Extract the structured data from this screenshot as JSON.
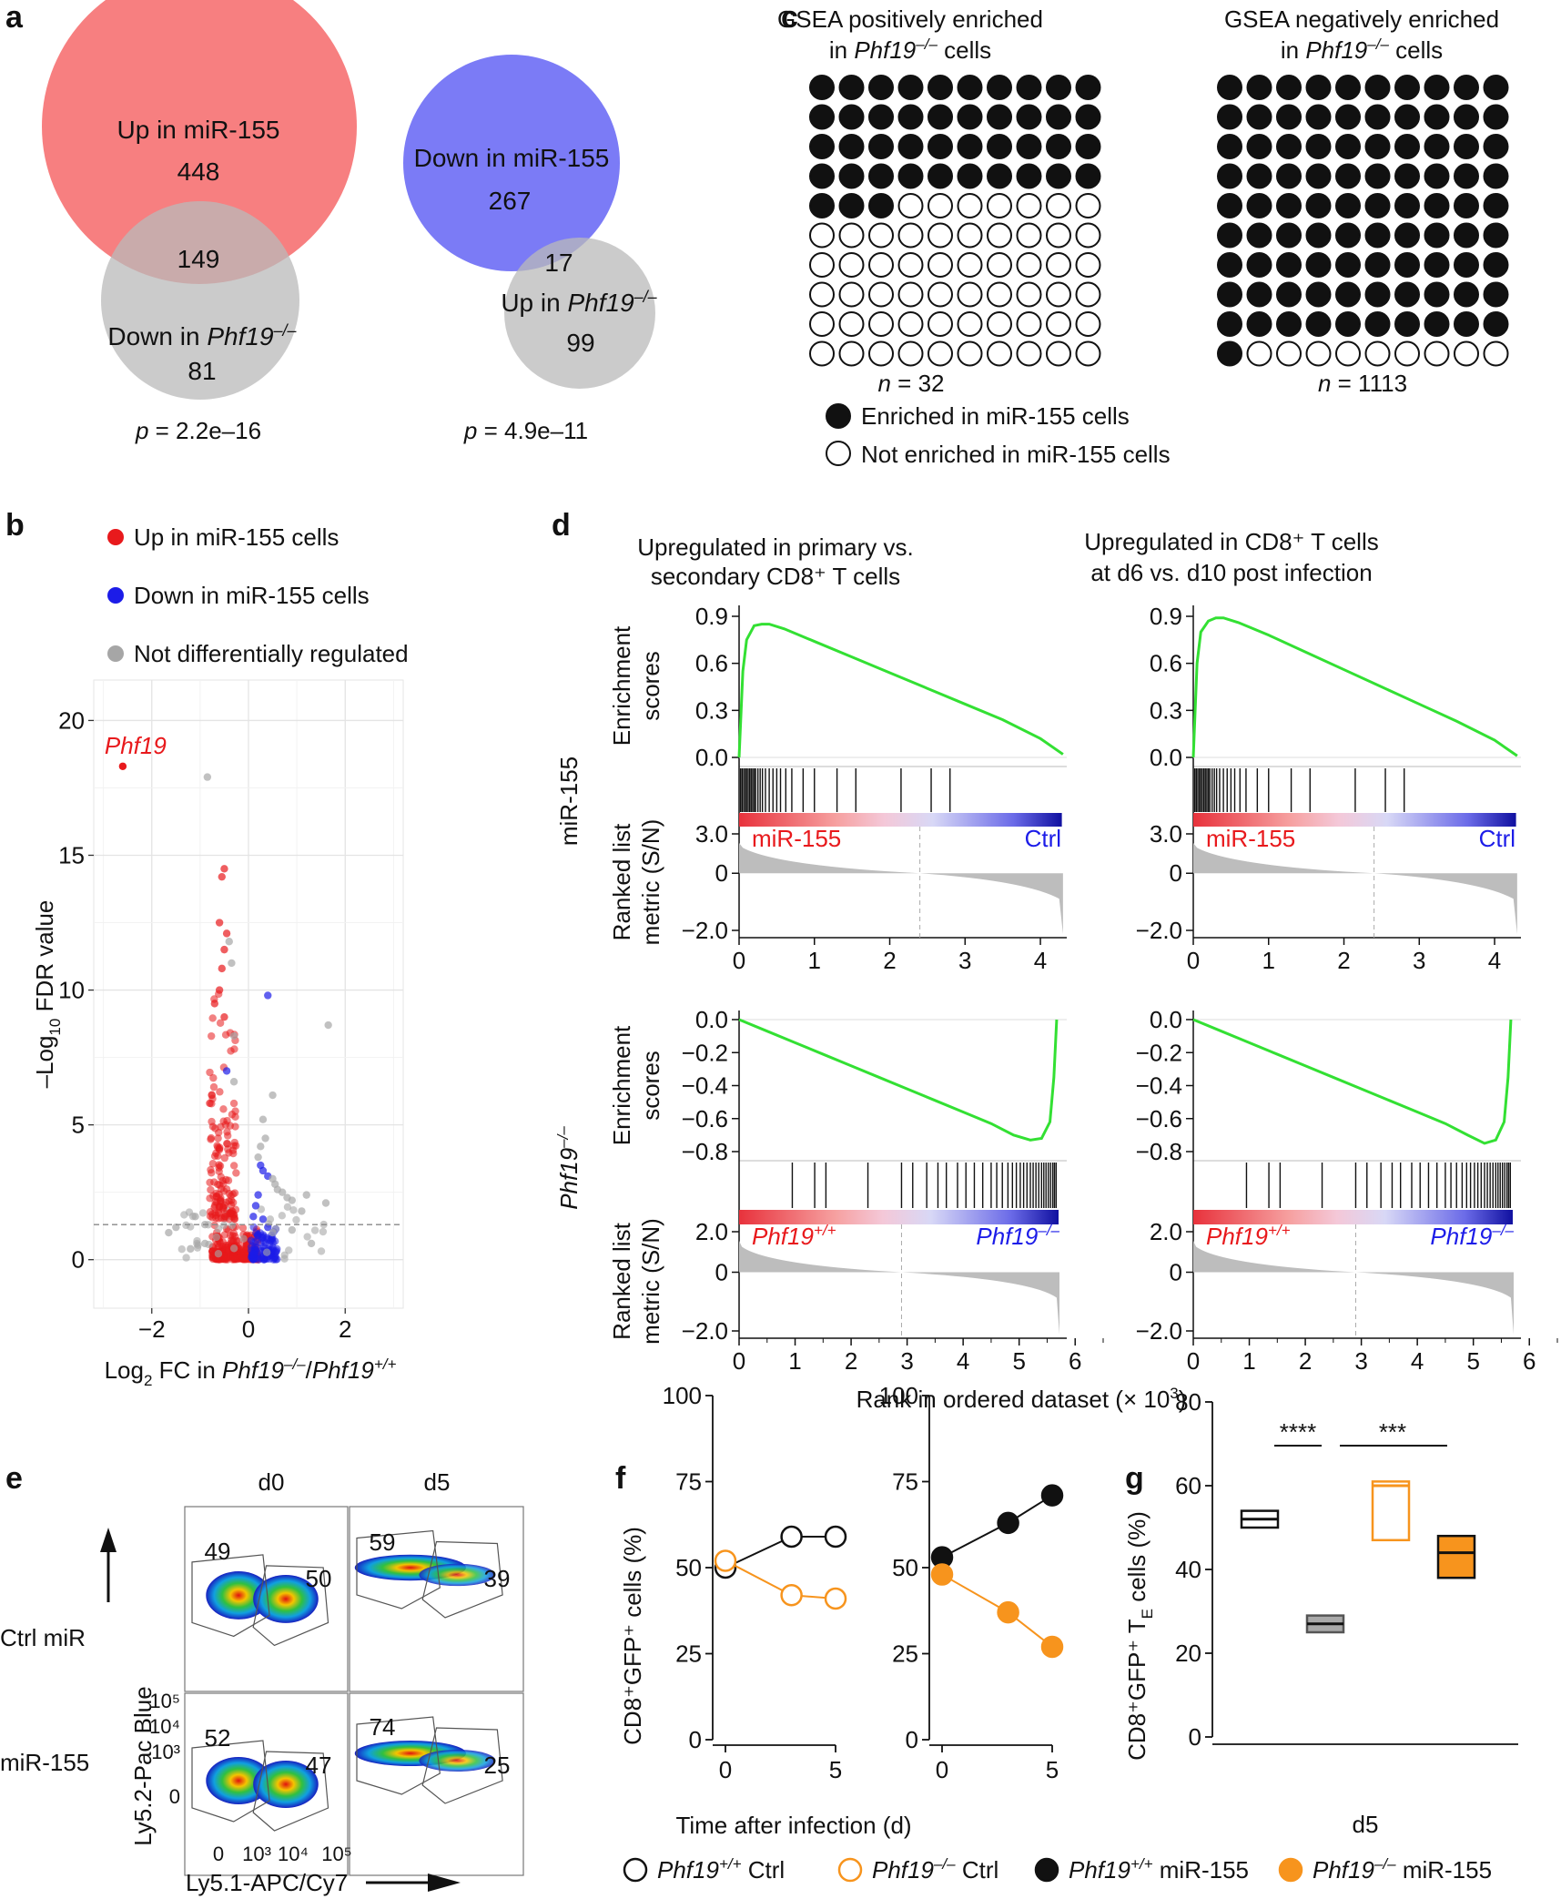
{
  "panels": {
    "a": "a",
    "b": "b",
    "c": "c",
    "d": "d",
    "e": "e",
    "f": "f",
    "g": "g"
  },
  "panel_a": {
    "venn1": {
      "top_label": "Up in miR-155",
      "top_only": "448",
      "overlap": "149",
      "bottom_label": "Down in ",
      "bottom_gene": "Phf19",
      "bottom_sup": "–/–",
      "bottom_only": "81",
      "p_prefix": "p",
      "p_value": " = 2.2e–16",
      "top_color": "#f77f80",
      "bottom_color": "#c4c4c4"
    },
    "venn2": {
      "top_label": "Down in miR-155",
      "top_only": "267",
      "overlap": "17",
      "bottom_label": "Up in ",
      "bottom_gene": "Phf19",
      "bottom_sup": "–/–",
      "bottom_only": "99",
      "p_prefix": "p",
      "p_value": " = 4.9e–11",
      "top_color": "#7b7bf6",
      "bottom_color": "#c4c4c4"
    }
  },
  "panel_b": {
    "legend": [
      {
        "label": "Up in miR-155 cells",
        "color": "#e8191c"
      },
      {
        "label": "Down in miR-155 cells",
        "color": "#1c1ce8"
      },
      {
        "label": "Not differentially regulated",
        "color": "#a6a6a6"
      }
    ],
    "highlight_gene": "Phf19",
    "ylabel_pre": "–Log",
    "ylabel_sub": "10",
    "ylabel_post": " FDR value",
    "xlabel_pre": "Log",
    "xlabel_sub": "2",
    "xlabel_mid": " FC in ",
    "xlabel_g1": "Phf19",
    "xlabel_s1": "–/–",
    "xlabel_slash": "/",
    "xlabel_g2": "Phf19",
    "xlabel_s2": "+/+"
  },
  "panel_c": {
    "left": {
      "title1": "GSEA positively enriched",
      "title2_pre": "in ",
      "title2_gene": "Phf19",
      "title2_sup": "–/–",
      "title2_post": " cells",
      "filled": 43,
      "total": 100,
      "n_label": "n",
      "n_value": " = 32"
    },
    "right": {
      "title1": "GSEA negatively enriched",
      "title2_pre": "in ",
      "title2_gene": "Phf19",
      "title2_sup": "–/–",
      "title2_post": " cells",
      "filled": 91,
      "total": 100,
      "n_label": "n",
      "n_value": " = 1113"
    },
    "legend_filled": "Enriched in miR-155 cells",
    "legend_empty": "Not enriched in miR-155 cells"
  },
  "panel_d": {
    "col_titles": [
      [
        "Upregulated in primary vs.",
        "secondary CD8⁺ T cells"
      ],
      [
        "Upregulated in CD8⁺ T cells",
        "at d6 vs. d10 post infection"
      ]
    ],
    "row_labels": {
      "top": "miR-155",
      "bottom_gene": "Phf19",
      "bottom_sup": "–/–"
    },
    "es_ylabel": [
      "Enrichment",
      "scores"
    ],
    "metric_ylabel": [
      "Ranked list",
      "metric (S/N)"
    ],
    "top_es_ticks": [
      "0.9",
      "0.6",
      "0.3",
      "0.0"
    ],
    "top_metric_ticks": [
      "3.0",
      "0",
      "−2.0"
    ],
    "top_x_ticks": [
      "0",
      "1",
      "2",
      "3",
      "4"
    ],
    "bottom_es_ticks": [
      "0.0",
      "−0.2",
      "−0.4",
      "−0.6",
      "−0.8"
    ],
    "bottom_metric_ticks": [
      "2.0",
      "0",
      "−2.0"
    ],
    "bottom_x_ticks": [
      "0",
      "1",
      "2",
      "3",
      "4",
      "5",
      "6"
    ],
    "top_left_label": "miR-155",
    "top_right_label": "Ctrl",
    "bot_left_gene": "Phf19",
    "bot_left_sup": "+/+",
    "bot_right_gene": "Phf19",
    "bot_right_sup": "–/–",
    "xlabel": "Rank in ordered dataset (× 10",
    "xlabel_sup": "3",
    "xlabel_end": ")"
  },
  "panel_e": {
    "col_labels": [
      "d0",
      "d5"
    ],
    "row_labels": [
      "Ctrl miR",
      "miR-155"
    ],
    "gates": [
      [
        "49",
        "50"
      ],
      [
        "59",
        "39"
      ],
      [
        "52",
        "47"
      ],
      [
        "74",
        "25"
      ]
    ],
    "y_axis_label": "Ly5.2-Pac Blue",
    "x_axis_label": "Ly5.1-APC/Cy7",
    "y_ticks": [
      "10⁵",
      "10⁴",
      "10³",
      "0"
    ],
    "x_ticks": [
      "0",
      "10³",
      "10⁴",
      "10⁵"
    ]
  },
  "panel_f": {
    "ylabel": "CD8⁺GFP⁺ cells (%)",
    "xlabel": "Time after infection (d)",
    "y_ticks": [
      "0",
      "25",
      "50",
      "75",
      "100"
    ],
    "x_ticks": [
      "0",
      "5"
    ]
  },
  "panel_g": {
    "ylabel_pre": "CD8⁺GFP⁺ T",
    "ylabel_sub": "E",
    "ylabel_post": " cells (%)",
    "y_ticks": [
      "0",
      "20",
      "40",
      "60",
      "80"
    ],
    "xlabel": "d5",
    "sig": [
      "****",
      "***"
    ]
  },
  "legend_bottom": [
    {
      "gene": "Phf19",
      "sup": "+/+",
      "rest": " Ctrl",
      "fill": "#ffffff",
      "stroke": "#111111"
    },
    {
      "gene": "Phf19",
      "sup": "–/–",
      "rest": " Ctrl",
      "fill": "#ffffff",
      "stroke": "#f7941d"
    },
    {
      "gene": "Phf19",
      "sup": "+/+",
      "rest": " miR-155",
      "fill": "#111111",
      "stroke": "#111111"
    },
    {
      "gene": "Phf19",
      "sup": "–/–",
      "rest": " miR-155",
      "fill": "#f7941d",
      "stroke": "#f7941d"
    }
  ],
  "chart_data": [
    {
      "panel": "b",
      "type": "scatter",
      "title": "",
      "xlabel": "Log2 FC in Phf19–/–/Phf19+/+",
      "ylabel": "–Log10 FDR value",
      "xlim": [
        -3.2,
        3.2
      ],
      "ylim": [
        -1.8,
        21.5
      ],
      "x_ticks": [
        -2,
        0,
        2
      ],
      "y_ticks": [
        0,
        5,
        10,
        15,
        20
      ],
      "threshold_y": 1.3,
      "labelled_points": [
        {
          "gene": "Phf19",
          "x": -2.6,
          "y": 18.3,
          "group": "up"
        }
      ],
      "points": [
        [
          -0.85,
          17.9,
          "ns"
        ],
        [
          -0.5,
          14.5,
          "up"
        ],
        [
          -0.55,
          14.2,
          "up"
        ],
        [
          -0.6,
          12.5,
          "up"
        ],
        [
          -0.45,
          12.1,
          "up"
        ],
        [
          -0.4,
          11.8,
          "ns"
        ],
        [
          -0.5,
          11.5,
          "up"
        ],
        [
          -0.35,
          11.0,
          "ns"
        ],
        [
          -0.55,
          10.8,
          "up"
        ],
        [
          -0.6,
          10.0,
          "up"
        ],
        [
          -0.7,
          9.5,
          "up"
        ],
        [
          -0.5,
          9.0,
          "up"
        ],
        [
          0.4,
          9.8,
          "down"
        ],
        [
          1.65,
          8.7,
          "ns"
        ],
        [
          -0.3,
          8.3,
          "ns"
        ],
        [
          -0.45,
          7.0,
          "down"
        ],
        [
          -0.3,
          6.6,
          "ns"
        ],
        [
          0.5,
          6.1,
          "ns"
        ],
        [
          -0.8,
          5.8,
          "up"
        ],
        [
          0.3,
          5.2,
          "ns"
        ],
        [
          0.35,
          4.5,
          "ns"
        ],
        [
          0.25,
          4.2,
          "ns"
        ],
        [
          0.2,
          3.8,
          "ns"
        ],
        [
          0.25,
          3.5,
          "down"
        ],
        [
          0.3,
          3.3,
          "down"
        ],
        [
          0.4,
          3.1,
          "down"
        ],
        [
          0.5,
          3.0,
          "ns"
        ],
        [
          0.55,
          2.8,
          "ns"
        ],
        [
          0.6,
          2.6,
          "ns"
        ],
        [
          0.7,
          2.5,
          "ns"
        ],
        [
          0.8,
          2.3,
          "ns"
        ],
        [
          0.9,
          2.2,
          "ns"
        ],
        [
          1.2,
          2.4,
          "ns"
        ],
        [
          1.6,
          2.1,
          "ns"
        ],
        [
          1.1,
          1.8,
          "ns"
        ],
        [
          -1.5,
          1.2,
          "ns"
        ],
        [
          -1.65,
          1.0,
          "ns"
        ],
        [
          -1.1,
          1.6,
          "ns"
        ],
        [
          -0.9,
          1.3,
          "ns"
        ],
        [
          0.15,
          2.0,
          "down"
        ],
        [
          0.2,
          2.4,
          "down"
        ],
        [
          0.1,
          1.6,
          "down"
        ],
        [
          0.3,
          1.5,
          "down"
        ],
        [
          0.4,
          1.2,
          "down"
        ],
        [
          0.5,
          1.0,
          "ns"
        ],
        [
          0.9,
          1.1,
          "ns"
        ],
        [
          1.3,
          0.6,
          "ns"
        ],
        [
          -0.9,
          0.6,
          "ns"
        ],
        [
          -1.2,
          0.4,
          "ns"
        ]
      ]
    },
    {
      "panel": "d",
      "type": "line",
      "title": "miR-155, primary vs. secondary",
      "x": [
        0,
        0.05,
        0.1,
        0.2,
        0.3,
        0.4,
        0.6,
        1.0,
        1.5,
        2.0,
        2.5,
        3.0,
        3.5,
        4.0,
        4.3
      ],
      "y": [
        0,
        0.55,
        0.75,
        0.84,
        0.85,
        0.85,
        0.82,
        0.74,
        0.64,
        0.54,
        0.44,
        0.34,
        0.24,
        0.12,
        0.02
      ],
      "xlim": [
        0,
        4.4
      ],
      "ylim": [
        0,
        0.95
      ]
    },
    {
      "panel": "d",
      "type": "line",
      "title": "miR-155, d6 vs. d10",
      "x": [
        0,
        0.05,
        0.1,
        0.2,
        0.3,
        0.4,
        0.6,
        1.0,
        1.5,
        2.0,
        2.5,
        3.0,
        3.5,
        4.0,
        4.3
      ],
      "y": [
        0,
        0.6,
        0.8,
        0.87,
        0.89,
        0.89,
        0.86,
        0.78,
        0.67,
        0.56,
        0.45,
        0.34,
        0.23,
        0.11,
        0.01
      ],
      "xlim": [
        0,
        4.4
      ],
      "ylim": [
        0,
        0.95
      ]
    },
    {
      "panel": "d",
      "type": "line",
      "title": "Phf19–/–, primary vs. secondary",
      "x": [
        0,
        0.5,
        1,
        1.5,
        2,
        2.5,
        3,
        3.5,
        4,
        4.5,
        4.9,
        5.2,
        5.4,
        5.55,
        5.62,
        5.67
      ],
      "y": [
        0,
        -0.07,
        -0.14,
        -0.21,
        -0.28,
        -0.35,
        -0.42,
        -0.49,
        -0.56,
        -0.63,
        -0.7,
        -0.73,
        -0.72,
        -0.62,
        -0.35,
        0
      ],
      "xlim": [
        0,
        5.8
      ],
      "ylim": [
        -0.8,
        0
      ]
    },
    {
      "panel": "d",
      "type": "line",
      "title": "Phf19–/–, d6 vs. d10",
      "x": [
        0,
        0.5,
        1,
        1.5,
        2,
        2.5,
        3,
        3.5,
        4,
        4.5,
        4.9,
        5.2,
        5.4,
        5.55,
        5.62,
        5.67
      ],
      "y": [
        0,
        -0.07,
        -0.14,
        -0.21,
        -0.28,
        -0.35,
        -0.42,
        -0.49,
        -0.56,
        -0.63,
        -0.7,
        -0.75,
        -0.73,
        -0.62,
        -0.35,
        0
      ],
      "xlim": [
        0,
        5.8
      ],
      "ylim": [
        -0.8,
        0
      ]
    },
    {
      "panel": "f",
      "type": "line",
      "title": "Ctrl",
      "x": [
        0,
        3,
        5
      ],
      "series": [
        {
          "name": "Phf19+/+ Ctrl",
          "values": [
            50,
            59,
            59
          ]
        },
        {
          "name": "Phf19–/– Ctrl",
          "values": [
            52,
            42,
            41
          ]
        }
      ],
      "xlim": [
        0,
        5
      ],
      "ylim": [
        0,
        100
      ]
    },
    {
      "panel": "f",
      "type": "line",
      "title": "miR-155",
      "x": [
        0,
        3,
        5
      ],
      "series": [
        {
          "name": "Phf19+/+ miR-155",
          "values": [
            53,
            63,
            71
          ]
        },
        {
          "name": "Phf19–/– miR-155",
          "values": [
            48,
            37,
            27
          ]
        }
      ],
      "xlim": [
        0,
        5
      ],
      "ylim": [
        0,
        100
      ]
    },
    {
      "panel": "g",
      "type": "bar",
      "title": "",
      "categories": [
        "Phf19+/+ Ctrl",
        "Phf19+/+ miR-155",
        "Phf19–/– Ctrl",
        "Phf19–/– miR-155"
      ],
      "boxes": [
        {
          "low": 50,
          "mid": 52,
          "high": 54
        },
        {
          "low": 25,
          "mid": 27,
          "high": 29
        },
        {
          "low": 47,
          "mid": 60,
          "high": 61
        },
        {
          "low": 38,
          "mid": 44,
          "high": 48
        }
      ],
      "ylim": [
        0,
        80
      ]
    }
  ]
}
